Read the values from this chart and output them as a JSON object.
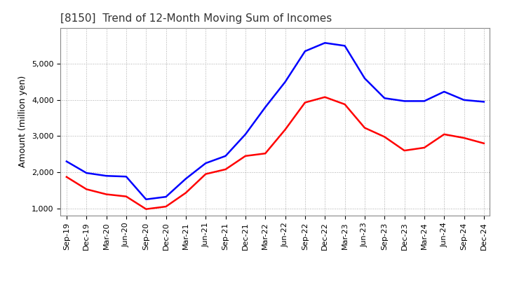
{
  "title": "[8150]  Trend of 12-Month Moving Sum of Incomes",
  "ylabel": "Amount (million yen)",
  "x_labels": [
    "Sep-19",
    "Dec-19",
    "Mar-20",
    "Jun-20",
    "Sep-20",
    "Dec-20",
    "Mar-21",
    "Jun-21",
    "Sep-21",
    "Dec-21",
    "Mar-22",
    "Jun-22",
    "Sep-22",
    "Dec-22",
    "Mar-23",
    "Jun-23",
    "Sep-23",
    "Dec-23",
    "Mar-24",
    "Jun-24",
    "Sep-24",
    "Dec-24"
  ],
  "ordinary_income": [
    2300,
    1980,
    1900,
    1880,
    1250,
    1320,
    1820,
    2250,
    2450,
    3050,
    3800,
    4500,
    5350,
    5580,
    5500,
    4600,
    4050,
    3970,
    3970,
    4230,
    4000,
    3950
  ],
  "net_income": [
    1870,
    1530,
    1390,
    1330,
    980,
    1050,
    1430,
    1950,
    2080,
    2450,
    2520,
    3180,
    3930,
    4080,
    3880,
    3230,
    2980,
    2600,
    2680,
    3050,
    2950,
    2800
  ],
  "ordinary_color": "#0000FF",
  "net_color": "#FF0000",
  "background_color": "#FFFFFF",
  "grid_color": "#AAAAAA",
  "ylim": [
    800,
    6000
  ],
  "yticks": [
    1000,
    2000,
    3000,
    4000,
    5000
  ],
  "line_width": 1.8,
  "title_fontsize": 11,
  "label_fontsize": 9,
  "tick_fontsize": 8,
  "legend_fontsize": 9
}
